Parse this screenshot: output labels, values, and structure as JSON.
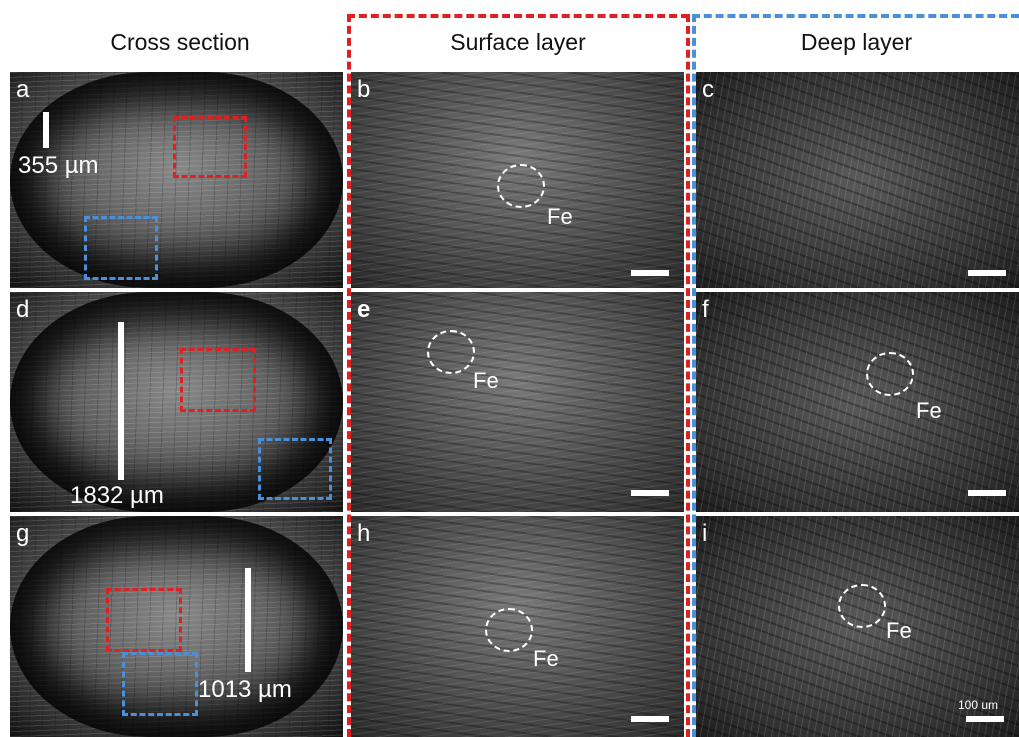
{
  "headers": {
    "col1": "Cross section",
    "col2": "Surface layer",
    "col3": "Deep layer"
  },
  "panels": {
    "a": {
      "label": "a",
      "scale_text": "355 µm"
    },
    "b": {
      "label": "b",
      "fe": "Fe"
    },
    "c": {
      "label": "c"
    },
    "d": {
      "label": "d",
      "scale_text": "1832 µm"
    },
    "e": {
      "label": "e",
      "fe": "Fe"
    },
    "f": {
      "label": "f",
      "fe": "Fe"
    },
    "g": {
      "label": "g",
      "scale_text": "1013 µm"
    },
    "h": {
      "label": "h",
      "fe": "Fe"
    },
    "i": {
      "label": "i",
      "fe": "Fe",
      "scalebar_text": "100 um"
    }
  },
  "colors": {
    "surface": "#e02020",
    "deep": "#4a90d9",
    "annotation": "#ffffff"
  }
}
